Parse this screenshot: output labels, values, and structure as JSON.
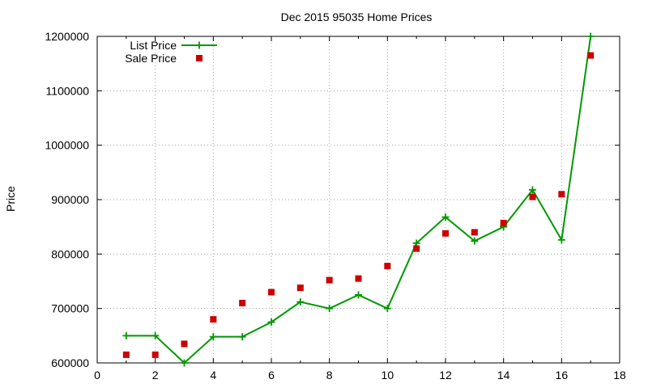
{
  "chart_data": {
    "type": "line",
    "title": "Dec 2015 95035 Home Prices",
    "xlabel": "",
    "ylabel": "Price",
    "xlim": [
      0,
      18
    ],
    "ylim": [
      600000,
      1200000
    ],
    "x_ticks": [
      0,
      2,
      4,
      6,
      8,
      10,
      12,
      14,
      16,
      18
    ],
    "y_ticks": [
      600000,
      700000,
      800000,
      900000,
      1000000,
      1100000,
      1200000
    ],
    "grid": true,
    "legend_position": "top-left",
    "series": [
      {
        "name": "List Price",
        "style": "line-with-plus-markers",
        "color": "#009900",
        "x": [
          1,
          2,
          3,
          4,
          5,
          6,
          7,
          8,
          9,
          10,
          11,
          12,
          13,
          14,
          15,
          16,
          17
        ],
        "values": [
          650000,
          650000,
          600000,
          648000,
          648000,
          675000,
          712000,
          700000,
          725000,
          700000,
          820000,
          868000,
          824000,
          850000,
          918000,
          826000,
          1200000
        ]
      },
      {
        "name": "Sale Price",
        "style": "square-markers",
        "color": "#cc0000",
        "x": [
          1,
          2,
          3,
          4,
          5,
          6,
          7,
          8,
          9,
          10,
          11,
          12,
          13,
          14,
          15,
          16,
          17
        ],
        "values": [
          615000,
          615000,
          635000,
          680000,
          710000,
          730000,
          738000,
          752000,
          755000,
          778000,
          810000,
          838000,
          840000,
          857000,
          905000,
          910000,
          1165000
        ]
      }
    ]
  }
}
